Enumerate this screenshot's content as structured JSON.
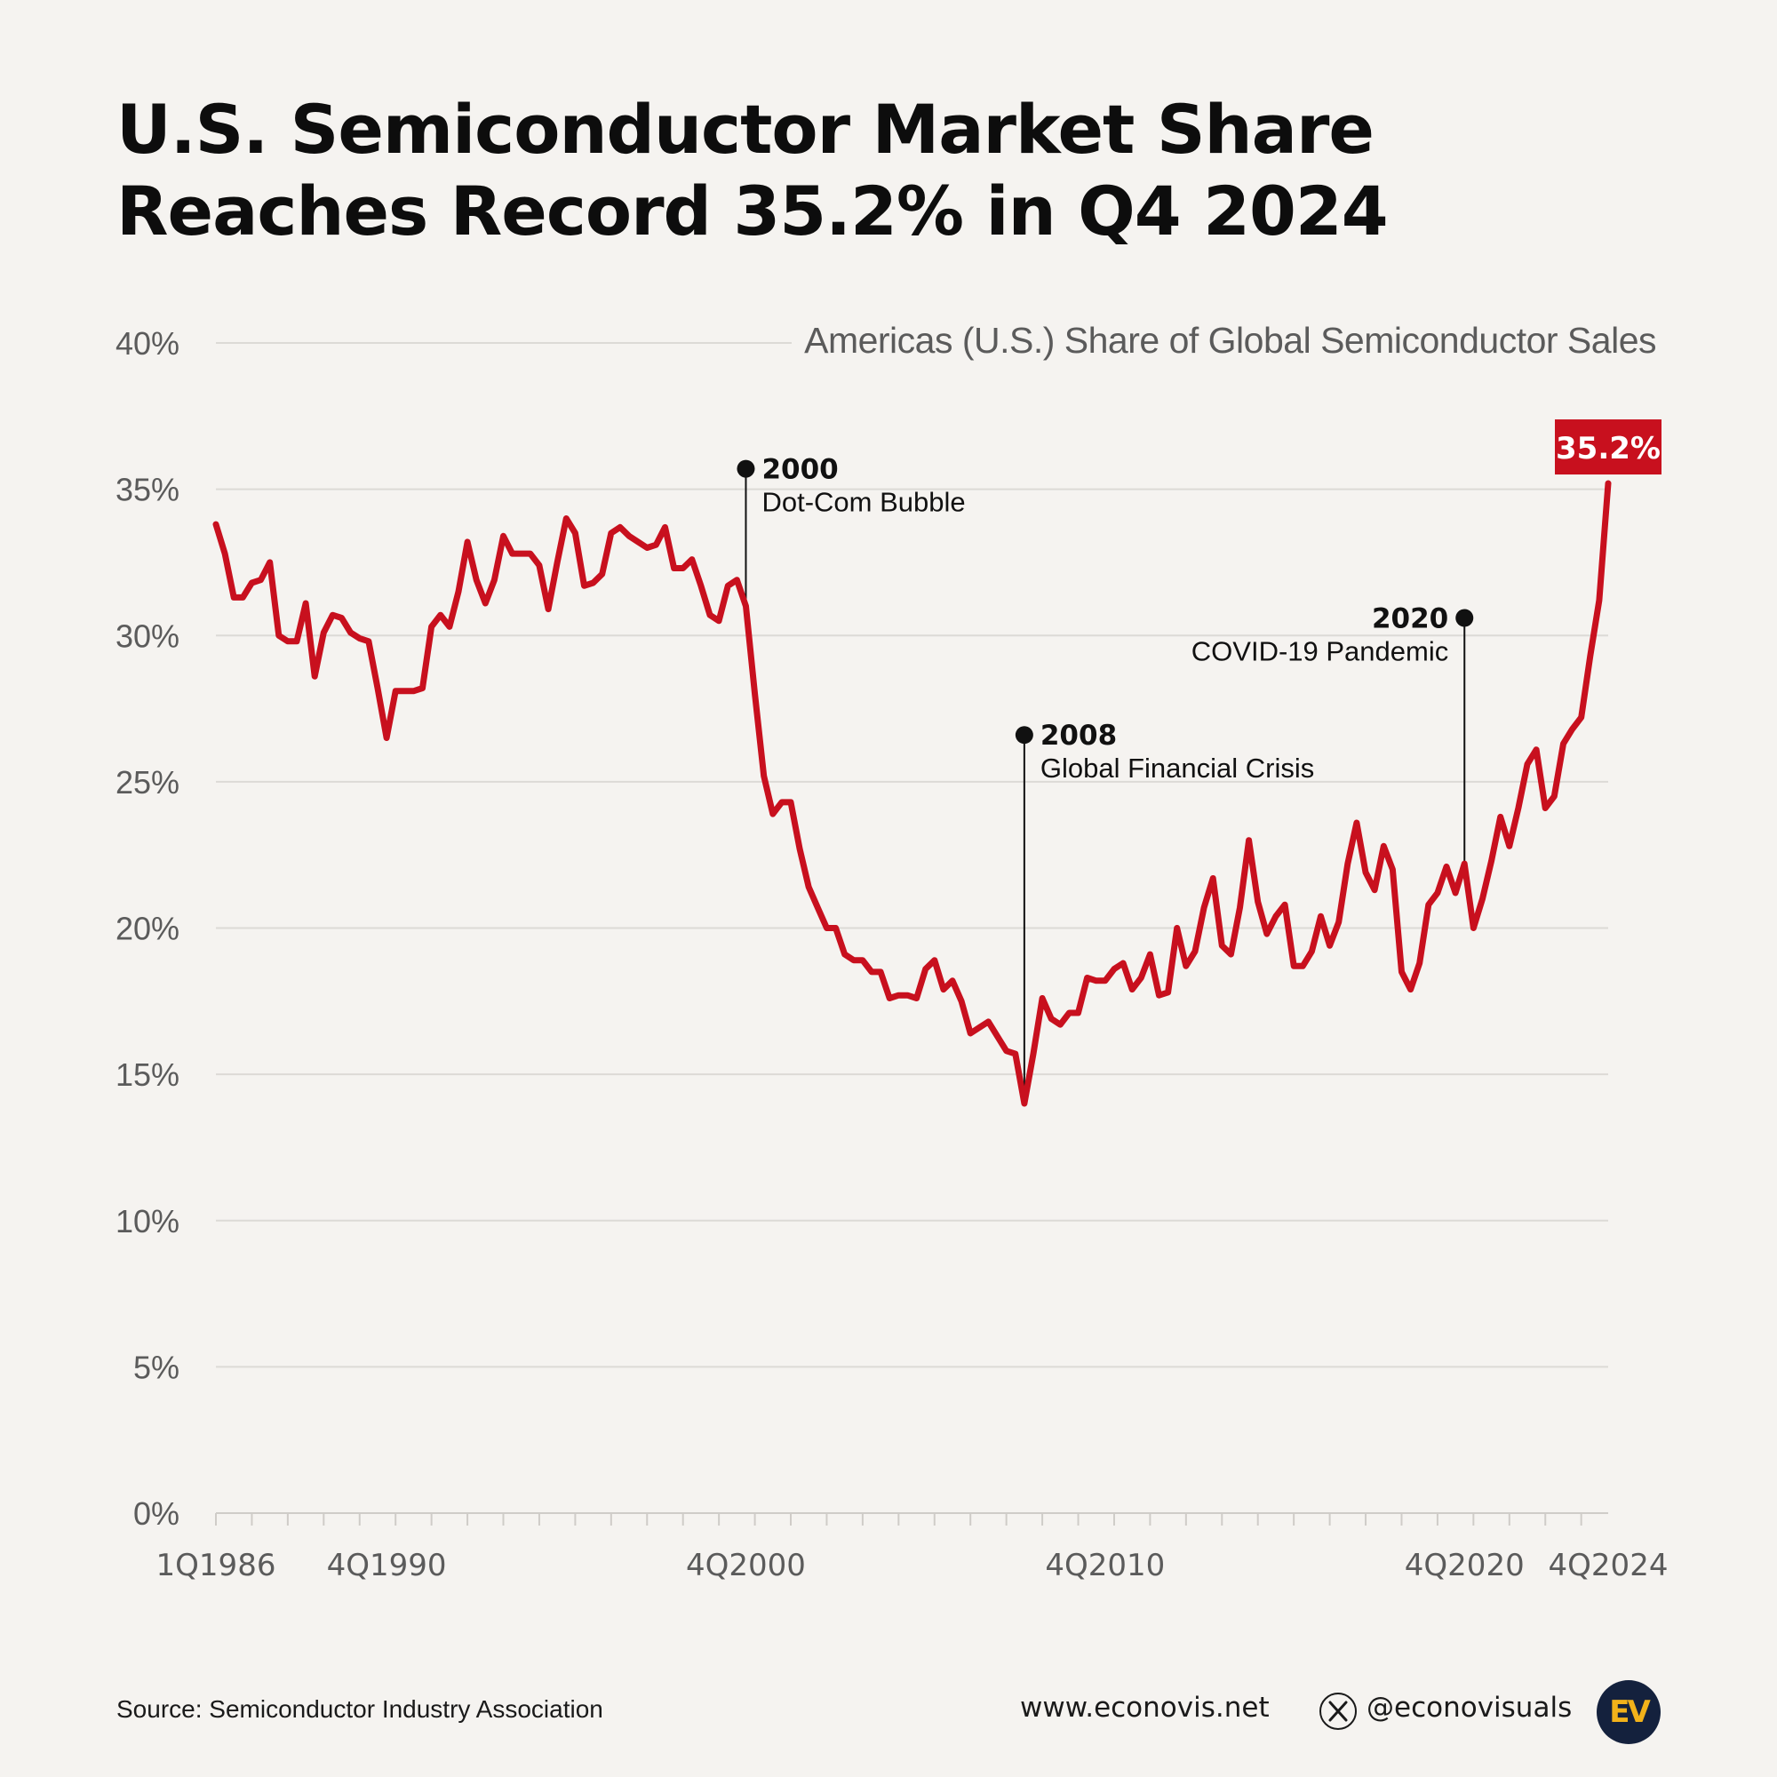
{
  "title_line1": "U.S. Semiconductor Market Share",
  "title_line2": "Reaches Record 35.2% in Q4 2024",
  "subtitle": "Americas (U.S.) Share of Global Semiconductor Sales",
  "footer": {
    "source": "Source: Semiconductor Industry Association",
    "website": "www.econovis.net",
    "x_icon": "x-logo-icon",
    "handle": "@econovisuals",
    "logo_text": "EV",
    "logo_colors": {
      "bg": "#14213d",
      "fg": "#f2b21a"
    }
  },
  "colors": {
    "line": "#c8101e",
    "grid": "#dcdad6",
    "axis_text": "#5b5b5b",
    "annotation": "#111111",
    "highlight_bg": "#c8101e"
  },
  "chart_data": {
    "type": "line",
    "title": "Americas (U.S.) Share of Global Semiconductor Sales",
    "ylim": [
      0,
      40
    ],
    "y_ticks": [
      0,
      5,
      10,
      15,
      20,
      25,
      30,
      35,
      40
    ],
    "y_tick_labels": [
      "0%",
      "5%",
      "10%",
      "15%",
      "20%",
      "25%",
      "30%",
      "35%",
      "40%"
    ],
    "x_start_quarter": "1Q1986",
    "x_end_quarter": "4Q2024",
    "x_ticks": [
      {
        "label": "1Q1986",
        "year": 1986,
        "quarter": 1
      },
      {
        "label": "4Q1990",
        "year": 1990,
        "quarter": 4
      },
      {
        "label": "4Q2000",
        "year": 2000,
        "quarter": 4
      },
      {
        "label": "4Q2010",
        "year": 2010,
        "quarter": 4
      },
      {
        "label": "4Q2020",
        "year": 2020,
        "quarter": 4
      },
      {
        "label": "4Q2024",
        "year": 2024,
        "quarter": 4
      }
    ],
    "grid": true,
    "series": [
      {
        "name": "",
        "points": [
          {
            "year": 1986.0,
            "value": 33.8
          },
          {
            "year": 1986.25,
            "value": 32.8
          },
          {
            "year": 1986.5,
            "value": 31.3
          },
          {
            "year": 1986.75,
            "value": 31.3
          },
          {
            "year": 1987.0,
            "value": 31.8
          },
          {
            "year": 1987.25,
            "value": 31.9
          },
          {
            "year": 1987.5,
            "value": 32.5
          },
          {
            "year": 1987.75,
            "value": 30.0
          },
          {
            "year": 1988.0,
            "value": 29.8
          },
          {
            "year": 1988.25,
            "value": 29.8
          },
          {
            "year": 1988.5,
            "value": 31.1
          },
          {
            "year": 1988.75,
            "value": 28.6
          },
          {
            "year": 1989.0,
            "value": 30.1
          },
          {
            "year": 1989.25,
            "value": 30.7
          },
          {
            "year": 1989.5,
            "value": 30.6
          },
          {
            "year": 1989.75,
            "value": 30.1
          },
          {
            "year": 1990.0,
            "value": 29.9
          },
          {
            "year": 1990.25,
            "value": 29.8
          },
          {
            "year": 1990.5,
            "value": 28.2
          },
          {
            "year": 1990.75,
            "value": 26.5
          },
          {
            "year": 1991.0,
            "value": 28.1
          },
          {
            "year": 1991.25,
            "value": 28.1
          },
          {
            "year": 1991.5,
            "value": 28.1
          },
          {
            "year": 1991.75,
            "value": 28.2
          },
          {
            "year": 1992.0,
            "value": 30.3
          },
          {
            "year": 1992.25,
            "value": 30.7
          },
          {
            "year": 1992.5,
            "value": 30.3
          },
          {
            "year": 1992.75,
            "value": 31.5
          },
          {
            "year": 1993.0,
            "value": 33.2
          },
          {
            "year": 1993.25,
            "value": 31.9
          },
          {
            "year": 1993.5,
            "value": 31.1
          },
          {
            "year": 1993.75,
            "value": 31.9
          },
          {
            "year": 1994.0,
            "value": 33.4
          },
          {
            "year": 1994.25,
            "value": 32.8
          },
          {
            "year": 1994.5,
            "value": 32.8
          },
          {
            "year": 1994.75,
            "value": 32.8
          },
          {
            "year": 1995.0,
            "value": 32.4
          },
          {
            "year": 1995.25,
            "value": 30.9
          },
          {
            "year": 1995.5,
            "value": 32.5
          },
          {
            "year": 1995.75,
            "value": 34.0
          },
          {
            "year": 1996.0,
            "value": 33.5
          },
          {
            "year": 1996.25,
            "value": 31.7
          },
          {
            "year": 1996.5,
            "value": 31.8
          },
          {
            "year": 1996.75,
            "value": 32.1
          },
          {
            "year": 1997.0,
            "value": 33.5
          },
          {
            "year": 1997.25,
            "value": 33.7
          },
          {
            "year": 1997.5,
            "value": 33.4
          },
          {
            "year": 1997.75,
            "value": 33.2
          },
          {
            "year": 1998.0,
            "value": 33.0
          },
          {
            "year": 1998.25,
            "value": 33.1
          },
          {
            "year": 1998.5,
            "value": 33.7
          },
          {
            "year": 1998.75,
            "value": 32.3
          },
          {
            "year": 1999.0,
            "value": 32.3
          },
          {
            "year": 1999.25,
            "value": 32.6
          },
          {
            "year": 1999.5,
            "value": 31.7
          },
          {
            "year": 1999.75,
            "value": 30.7
          },
          {
            "year": 2000.0,
            "value": 30.5
          },
          {
            "year": 2000.25,
            "value": 31.7
          },
          {
            "year": 2000.5,
            "value": 31.9
          },
          {
            "year": 2000.75,
            "value": 31.0
          },
          {
            "year": 2001.0,
            "value": 28.0
          },
          {
            "year": 2001.25,
            "value": 25.2
          },
          {
            "year": 2001.5,
            "value": 23.9
          },
          {
            "year": 2001.75,
            "value": 24.3
          },
          {
            "year": 2002.0,
            "value": 24.3
          },
          {
            "year": 2002.25,
            "value": 22.7
          },
          {
            "year": 2002.5,
            "value": 21.4
          },
          {
            "year": 2002.75,
            "value": 20.7
          },
          {
            "year": 2003.0,
            "value": 20.0
          },
          {
            "year": 2003.25,
            "value": 20.0
          },
          {
            "year": 2003.5,
            "value": 19.1
          },
          {
            "year": 2003.75,
            "value": 18.9
          },
          {
            "year": 2004.0,
            "value": 18.9
          },
          {
            "year": 2004.25,
            "value": 18.5
          },
          {
            "year": 2004.5,
            "value": 18.5
          },
          {
            "year": 2004.75,
            "value": 17.6
          },
          {
            "year": 2005.0,
            "value": 17.7
          },
          {
            "year": 2005.25,
            "value": 17.7
          },
          {
            "year": 2005.5,
            "value": 17.6
          },
          {
            "year": 2005.75,
            "value": 18.6
          },
          {
            "year": 2006.0,
            "value": 18.9
          },
          {
            "year": 2006.25,
            "value": 17.9
          },
          {
            "year": 2006.5,
            "value": 18.2
          },
          {
            "year": 2006.75,
            "value": 17.5
          },
          {
            "year": 2007.0,
            "value": 16.4
          },
          {
            "year": 2007.25,
            "value": 16.6
          },
          {
            "year": 2007.5,
            "value": 16.8
          },
          {
            "year": 2007.75,
            "value": 16.3
          },
          {
            "year": 2008.0,
            "value": 15.8
          },
          {
            "year": 2008.25,
            "value": 15.7
          },
          {
            "year": 2008.5,
            "value": 14.0
          },
          {
            "year": 2008.75,
            "value": 15.7
          },
          {
            "year": 2009.0,
            "value": 17.6
          },
          {
            "year": 2009.25,
            "value": 16.9
          },
          {
            "year": 2009.5,
            "value": 16.7
          },
          {
            "year": 2009.75,
            "value": 17.1
          },
          {
            "year": 2010.0,
            "value": 17.1
          },
          {
            "year": 2010.25,
            "value": 18.3
          },
          {
            "year": 2010.5,
            "value": 18.2
          },
          {
            "year": 2010.75,
            "value": 18.2
          },
          {
            "year": 2011.0,
            "value": 18.6
          },
          {
            "year": 2011.25,
            "value": 18.8
          },
          {
            "year": 2011.5,
            "value": 17.9
          },
          {
            "year": 2011.75,
            "value": 18.3
          },
          {
            "year": 2012.0,
            "value": 19.1
          },
          {
            "year": 2012.25,
            "value": 17.7
          },
          {
            "year": 2012.5,
            "value": 17.8
          },
          {
            "year": 2012.75,
            "value": 20.0
          },
          {
            "year": 2013.0,
            "value": 18.7
          },
          {
            "year": 2013.25,
            "value": 19.2
          },
          {
            "year": 2013.5,
            "value": 20.7
          },
          {
            "year": 2013.75,
            "value": 21.7
          },
          {
            "year": 2014.0,
            "value": 19.4
          },
          {
            "year": 2014.25,
            "value": 19.1
          },
          {
            "year": 2014.5,
            "value": 20.7
          },
          {
            "year": 2014.75,
            "value": 23.0
          },
          {
            "year": 2015.0,
            "value": 20.9
          },
          {
            "year": 2015.25,
            "value": 19.8
          },
          {
            "year": 2015.5,
            "value": 20.4
          },
          {
            "year": 2015.75,
            "value": 20.8
          },
          {
            "year": 2016.0,
            "value": 18.7
          },
          {
            "year": 2016.25,
            "value": 18.7
          },
          {
            "year": 2016.5,
            "value": 19.2
          },
          {
            "year": 2016.75,
            "value": 20.4
          },
          {
            "year": 2017.0,
            "value": 19.4
          },
          {
            "year": 2017.25,
            "value": 20.2
          },
          {
            "year": 2017.5,
            "value": 22.2
          },
          {
            "year": 2017.75,
            "value": 23.6
          },
          {
            "year": 2018.0,
            "value": 21.9
          },
          {
            "year": 2018.25,
            "value": 21.3
          },
          {
            "year": 2018.5,
            "value": 22.8
          },
          {
            "year": 2018.75,
            "value": 22.0
          },
          {
            "year": 2019.0,
            "value": 18.5
          },
          {
            "year": 2019.25,
            "value": 17.9
          },
          {
            "year": 2019.5,
            "value": 18.8
          },
          {
            "year": 2019.75,
            "value": 20.8
          },
          {
            "year": 2020.0,
            "value": 21.2
          },
          {
            "year": 2020.25,
            "value": 22.1
          },
          {
            "year": 2020.5,
            "value": 21.2
          },
          {
            "year": 2020.75,
            "value": 22.2
          },
          {
            "year": 2021.0,
            "value": 20.0
          },
          {
            "year": 2021.25,
            "value": 21.0
          },
          {
            "year": 2021.5,
            "value": 22.3
          },
          {
            "year": 2021.75,
            "value": 23.8
          },
          {
            "year": 2022.0,
            "value": 22.8
          },
          {
            "year": 2022.25,
            "value": 24.1
          },
          {
            "year": 2022.5,
            "value": 25.6
          },
          {
            "year": 2022.75,
            "value": 26.1
          },
          {
            "year": 2023.0,
            "value": 24.1
          },
          {
            "year": 2023.25,
            "value": 24.5
          },
          {
            "year": 2023.5,
            "value": 26.3
          },
          {
            "year": 2023.75,
            "value": 26.8
          },
          {
            "year": 2024.0,
            "value": 27.2
          },
          {
            "year": 2024.25,
            "value": 29.3
          },
          {
            "year": 2024.5,
            "value": 31.2
          },
          {
            "year": 2024.75,
            "value": 35.2
          }
        ]
      }
    ],
    "annotations": [
      {
        "year_label": "2000",
        "text": "Dot-Com Bubble",
        "x": 2000.75,
        "label_side": "right",
        "dot_value": 35.7,
        "line_to_value": 31.0
      },
      {
        "year_label": "2008",
        "text": "Global Financial Crisis",
        "x": 2008.5,
        "label_side": "right",
        "dot_value": 26.6,
        "line_to_value": 14.0
      },
      {
        "year_label": "2020",
        "text": "COVID-19 Pandemic",
        "x": 2020.75,
        "label_side": "left",
        "dot_value": 30.6,
        "line_to_value": 22.2
      }
    ],
    "highlight": {
      "label": "35.2%",
      "x": 2024.75,
      "value": 35.2
    }
  }
}
